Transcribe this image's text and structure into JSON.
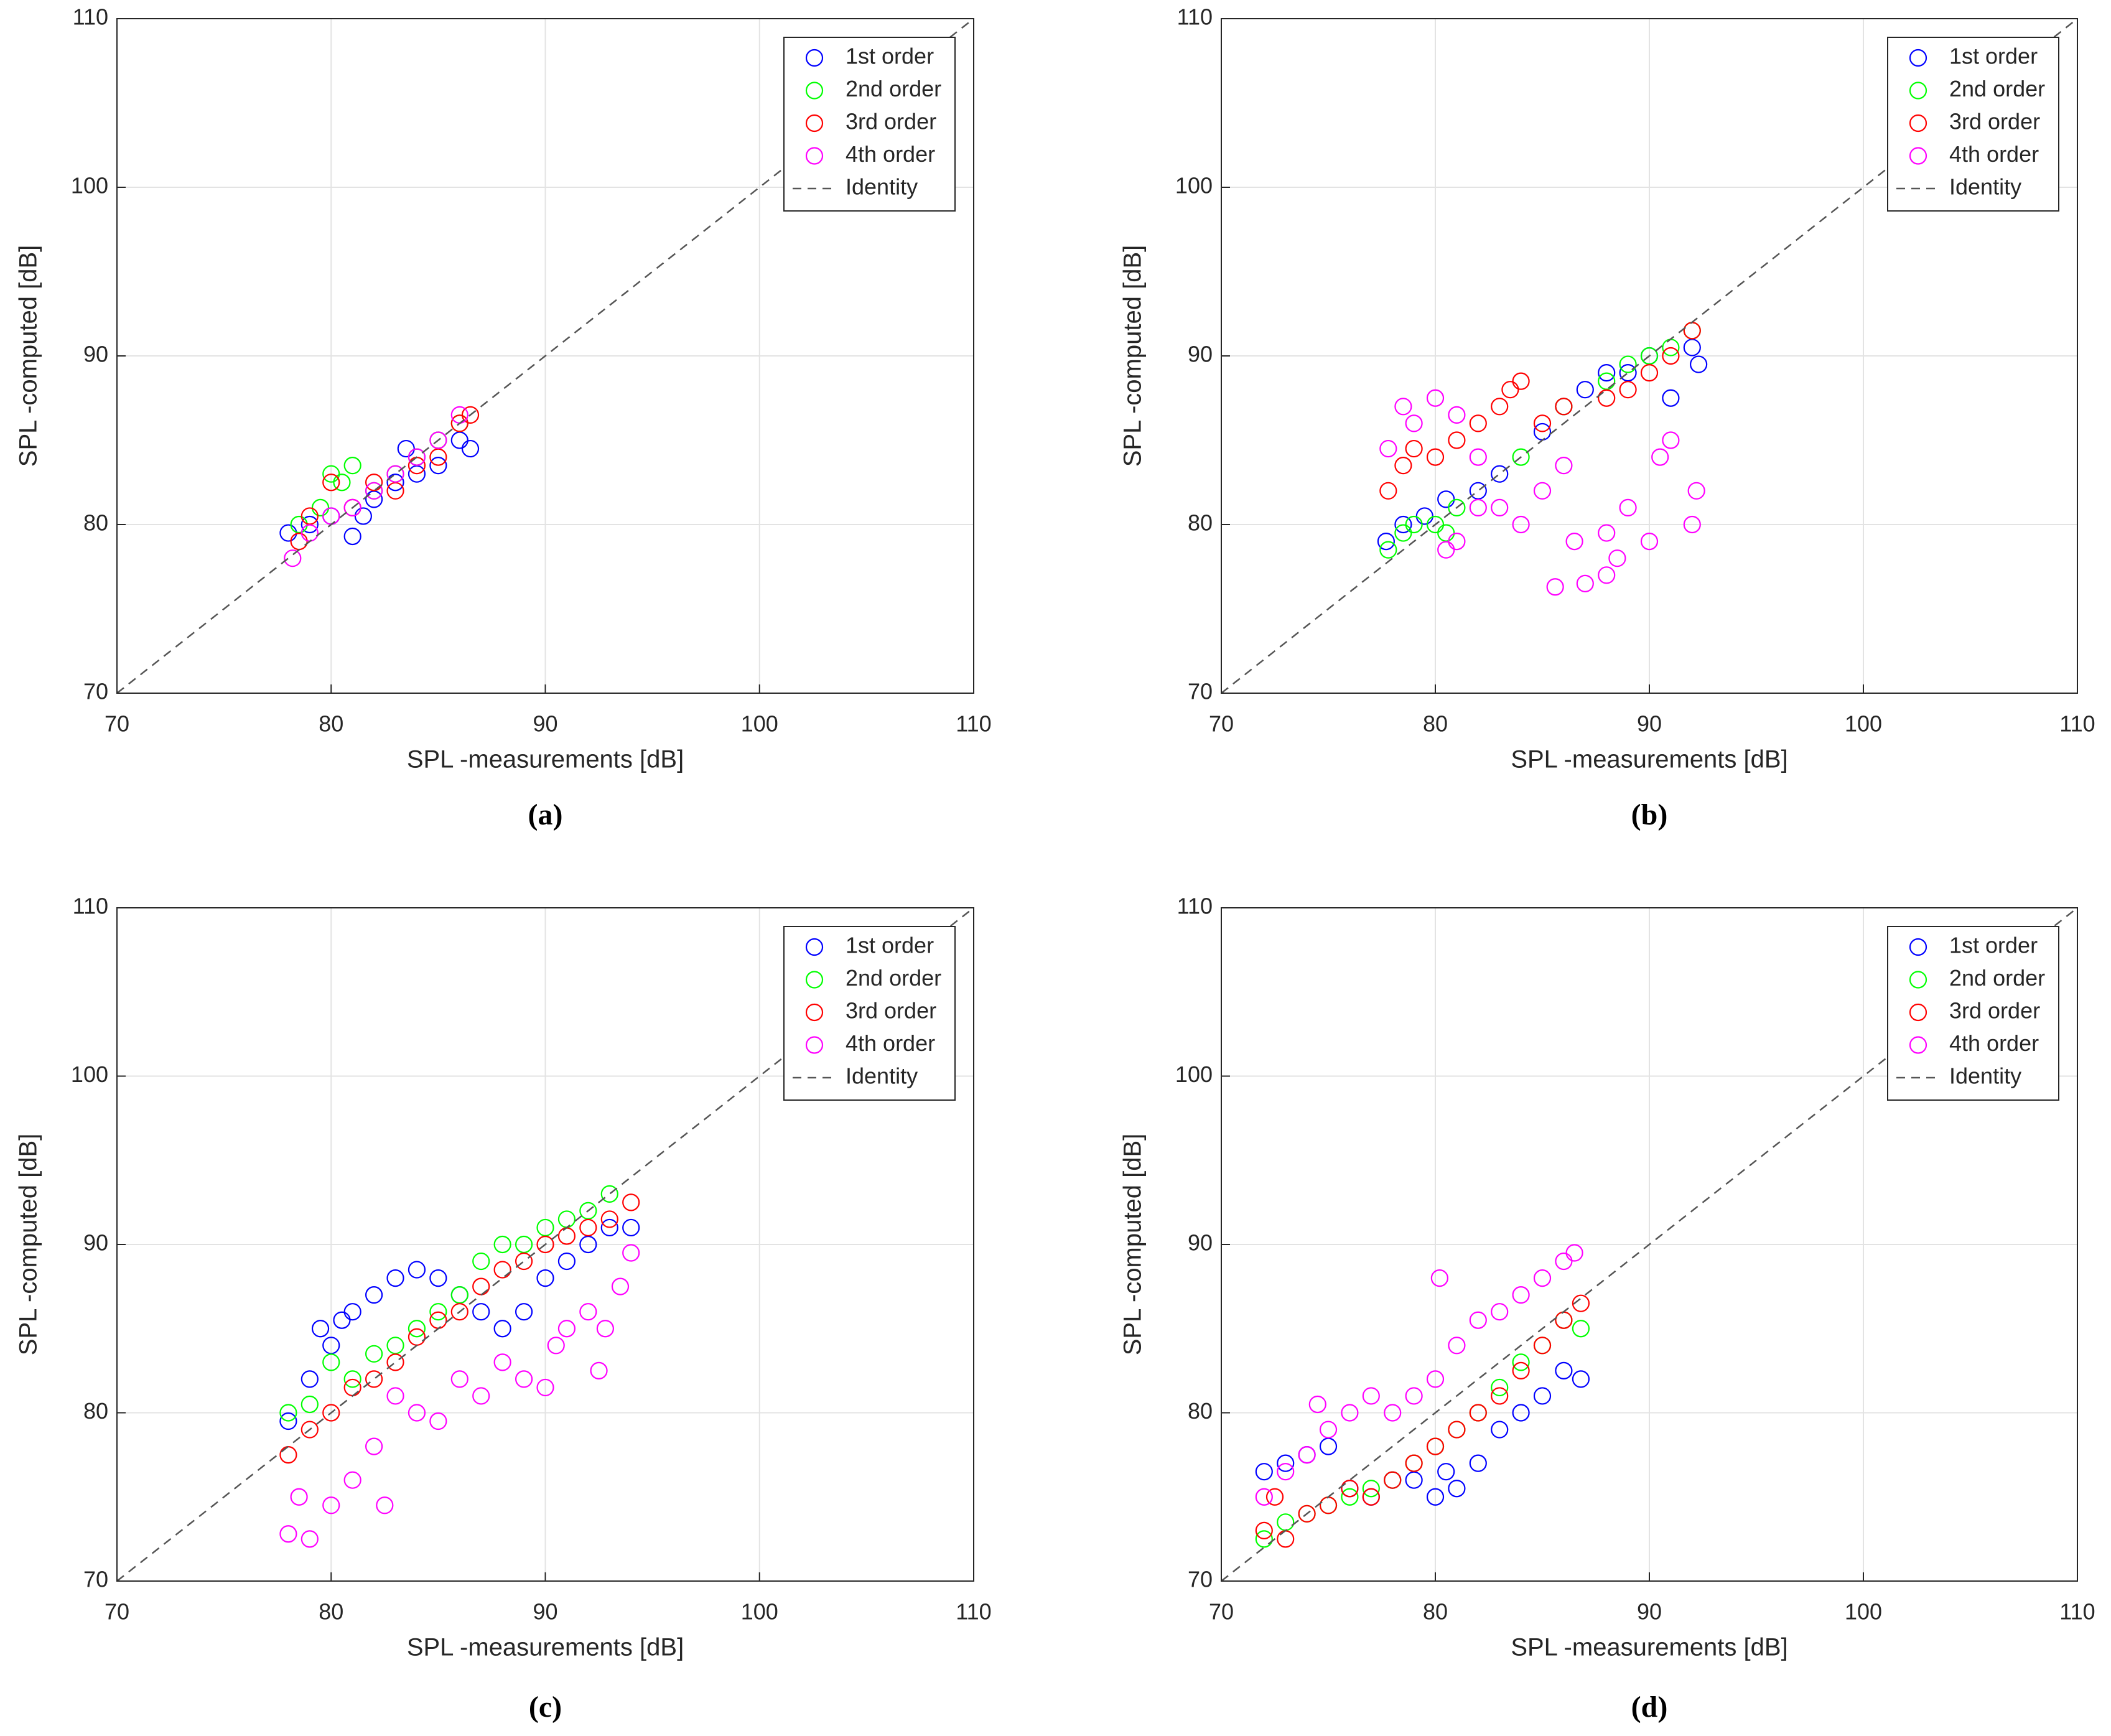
{
  "chart_data": [
    {
      "type": "scatter",
      "title": "(a)",
      "xlabel": "SPL -measurements [dB]",
      "ylabel": "SPL -computed [dB]",
      "xlim": [
        70,
        110
      ],
      "ylim": [
        70,
        110
      ],
      "xticks": [
        70,
        80,
        90,
        100,
        110
      ],
      "yticks": [
        70,
        80,
        90,
        100,
        110
      ],
      "grid": true,
      "legend": "upper right",
      "series": [
        {
          "name": "1st order",
          "color": "#0000ff",
          "x": [
            78,
            79,
            80,
            81,
            81.5,
            82,
            83,
            83.5,
            84,
            85,
            86,
            86.5
          ],
          "y": [
            79.5,
            80,
            80.5,
            79.3,
            80.5,
            81.5,
            82.5,
            84.5,
            83,
            83.5,
            85,
            84.5
          ]
        },
        {
          "name": "2nd order",
          "color": "#00ff00",
          "x": [
            78.5,
            79.5,
            80,
            80.5,
            81,
            82,
            83,
            84,
            85,
            86
          ],
          "y": [
            80,
            81,
            83,
            82.5,
            83.5,
            82,
            83,
            84,
            85,
            86
          ]
        },
        {
          "name": "3rd order",
          "color": "#ff0000",
          "x": [
            78.5,
            79,
            80,
            81,
            82,
            83,
            84,
            85,
            86,
            86.5
          ],
          "y": [
            79,
            80.5,
            82.5,
            81,
            82.5,
            82,
            83.5,
            84,
            86,
            86.5
          ]
        },
        {
          "name": "4th order",
          "color": "#ff00ff",
          "x": [
            78.2,
            79,
            80,
            81,
            82,
            83,
            84,
            85,
            86
          ],
          "y": [
            78,
            79.5,
            80.5,
            81,
            82,
            83,
            84,
            85,
            86.5
          ]
        },
        {
          "name": "Identity",
          "color": "#555555",
          "line": "dashed",
          "x": [
            70,
            110
          ],
          "y": [
            70,
            110
          ]
        }
      ]
    },
    {
      "type": "scatter",
      "title": "(b)",
      "xlabel": "SPL -measurements [dB]",
      "ylabel": "SPL -computed [dB]",
      "xlim": [
        70,
        110
      ],
      "ylim": [
        70,
        110
      ],
      "xticks": [
        70,
        80,
        90,
        100,
        110
      ],
      "yticks": [
        70,
        80,
        90,
        100,
        110
      ],
      "grid": true,
      "legend": "upper right",
      "series": [
        {
          "name": "1st order",
          "color": "#0000ff",
          "x": [
            77.7,
            78.5,
            79.5,
            80.5,
            82,
            83,
            85,
            86,
            87,
            88,
            89,
            90,
            91,
            92,
            92.3
          ],
          "y": [
            79,
            80,
            80.5,
            81.5,
            82,
            83,
            85.5,
            87,
            88,
            89,
            89,
            90,
            87.5,
            90.5,
            89.5
          ]
        },
        {
          "name": "2nd order",
          "color": "#00ff00",
          "x": [
            77.8,
            78.5,
            79,
            80,
            80.5,
            81,
            84,
            86,
            88,
            89,
            90,
            91,
            92
          ],
          "y": [
            78.5,
            79.5,
            80,
            80,
            79.5,
            81,
            84,
            87,
            88.5,
            89.5,
            90,
            90.5,
            91.5
          ]
        },
        {
          "name": "3rd order",
          "color": "#ff0000",
          "x": [
            77.8,
            78.5,
            79,
            80,
            81,
            82,
            83,
            83.5,
            84,
            85,
            86,
            88,
            89,
            90,
            91,
            92
          ],
          "y": [
            82,
            83.5,
            84.5,
            84,
            85,
            86,
            87,
            88,
            88.5,
            86,
            87,
            87.5,
            88,
            89,
            90,
            91.5
          ]
        },
        {
          "name": "4th order",
          "color": "#ff00ff",
          "x": [
            77.8,
            78.5,
            79,
            80,
            81,
            82,
            82,
            84,
            85,
            85.6,
            86.5,
            87,
            88,
            88.5,
            89,
            90,
            90.5,
            91,
            92,
            92.2,
            81,
            80.5,
            83,
            86,
            88
          ],
          "y": [
            84.5,
            87,
            86,
            87.5,
            86.5,
            84,
            81,
            80,
            82,
            76.3,
            79,
            76.5,
            77,
            78,
            81,
            79,
            84,
            85,
            80,
            82,
            79,
            78.5,
            81,
            83.5,
            79.5
          ]
        },
        {
          "name": "Identity",
          "color": "#555555",
          "line": "dashed",
          "x": [
            70,
            110
          ],
          "y": [
            70,
            110
          ]
        }
      ]
    },
    {
      "type": "scatter",
      "title": "(c)",
      "xlabel": "SPL -measurements [dB]",
      "ylabel": "SPL -computed [dB]",
      "xlim": [
        70,
        110
      ],
      "ylim": [
        70,
        110
      ],
      "xticks": [
        70,
        80,
        90,
        100,
        110
      ],
      "yticks": [
        70,
        80,
        90,
        100,
        110
      ],
      "grid": true,
      "legend": "upper right",
      "series": [
        {
          "name": "1st order",
          "color": "#0000ff",
          "x": [
            78,
            79,
            79.5,
            80,
            80.5,
            81,
            82,
            83,
            84,
            85,
            86,
            87,
            88,
            89,
            90,
            91,
            92,
            93,
            94
          ],
          "y": [
            79.5,
            82,
            85,
            84,
            85.5,
            86,
            87,
            88,
            88.5,
            88,
            87,
            86,
            85,
            86,
            88,
            89,
            90,
            91,
            91
          ]
        },
        {
          "name": "2nd order",
          "color": "#00ff00",
          "x": [
            78,
            79,
            80,
            81,
            82,
            83,
            84,
            85,
            86,
            87,
            88,
            89,
            90,
            91,
            92,
            93
          ],
          "y": [
            80,
            80.5,
            83,
            82,
            83.5,
            84,
            85,
            86,
            87,
            89,
            90,
            90,
            91,
            91.5,
            92,
            93
          ]
        },
        {
          "name": "3rd order",
          "color": "#ff0000",
          "x": [
            78,
            79,
            80,
            81,
            82,
            83,
            84,
            85,
            86,
            87,
            88,
            89,
            90,
            91,
            92,
            93,
            94
          ],
          "y": [
            77.5,
            79,
            80,
            81.5,
            82,
            83,
            84.5,
            85.5,
            86,
            87.5,
            88.5,
            89,
            90,
            90.5,
            91,
            91.5,
            92.5
          ]
        },
        {
          "name": "4th order",
          "color": "#ff00ff",
          "x": [
            78,
            78.5,
            79,
            80,
            81,
            82,
            82.5,
            83,
            84,
            85,
            86,
            87,
            88,
            89,
            90,
            90.5,
            91,
            92,
            92.5,
            93.5,
            94,
            92.8
          ],
          "y": [
            72.8,
            75,
            72.5,
            74.5,
            76,
            78,
            74.5,
            81,
            80,
            79.5,
            82,
            81,
            83,
            82,
            81.5,
            84,
            85,
            86,
            82.5,
            87.5,
            89.5,
            85
          ]
        },
        {
          "name": "Identity",
          "color": "#555555",
          "line": "dashed",
          "x": [
            70,
            110
          ],
          "y": [
            70,
            110
          ]
        }
      ]
    },
    {
      "type": "scatter",
      "title": "(d)",
      "xlabel": "SPL -measurements [dB]",
      "ylabel": "SPL -computed [dB]",
      "xlim": [
        70,
        110
      ],
      "ylim": [
        70,
        110
      ],
      "xticks": [
        70,
        80,
        90,
        100,
        110
      ],
      "yticks": [
        70,
        80,
        90,
        100,
        110
      ],
      "grid": true,
      "legend": "upper right",
      "series": [
        {
          "name": "1st order",
          "color": "#0000ff",
          "x": [
            72,
            73,
            74,
            75,
            76,
            77,
            78,
            79,
            80,
            80.5,
            81,
            82,
            83,
            84,
            85,
            86,
            86.8
          ],
          "y": [
            76.5,
            77,
            77.5,
            78,
            75.5,
            75,
            76,
            76,
            75,
            76.5,
            75.5,
            77,
            79,
            80,
            81,
            82.5,
            82
          ]
        },
        {
          "name": "2nd order",
          "color": "#00ff00",
          "x": [
            72,
            73,
            74,
            75,
            76,
            77,
            78,
            79,
            80,
            81,
            82,
            83,
            84,
            85,
            86,
            86.8
          ],
          "y": [
            72.5,
            73.5,
            74,
            74.5,
            75,
            75.5,
            76,
            77,
            78,
            79,
            80,
            81.5,
            83,
            84,
            85.5,
            85
          ]
        },
        {
          "name": "3rd order",
          "color": "#ff0000",
          "x": [
            72,
            72.5,
            73,
            74,
            75,
            76,
            77,
            78,
            79,
            80,
            81,
            82,
            83,
            84,
            85,
            86,
            86.8
          ],
          "y": [
            73,
            75,
            72.5,
            74,
            74.5,
            75.5,
            75,
            76,
            77,
            78,
            79,
            80,
            81,
            82.5,
            84,
            85.5,
            86.5
          ]
        },
        {
          "name": "4th order",
          "color": "#ff00ff",
          "x": [
            72,
            73,
            74,
            74.5,
            75,
            76,
            77,
            78,
            79,
            80,
            80.2,
            81,
            82,
            83,
            84,
            85,
            86,
            86.5
          ],
          "y": [
            75,
            76.5,
            77.5,
            80.5,
            79,
            80,
            81,
            80,
            81,
            82,
            88,
            84,
            85.5,
            86,
            87,
            88,
            89,
            89.5
          ]
        },
        {
          "name": "Identity",
          "color": "#555555",
          "line": "dashed",
          "x": [
            70,
            110
          ],
          "y": [
            70,
            110
          ]
        }
      ]
    }
  ]
}
